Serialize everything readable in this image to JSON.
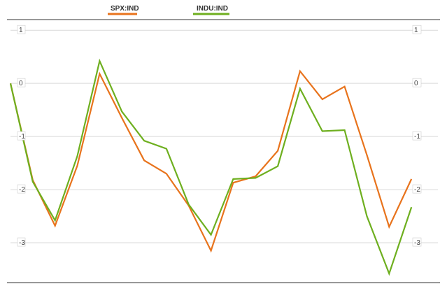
{
  "chart_data": {
    "type": "line",
    "title": "",
    "xlabel": "",
    "ylabel": "",
    "x": [
      0,
      1,
      2,
      3,
      4,
      5,
      6,
      7,
      8,
      9,
      10,
      11,
      12,
      13,
      14,
      15,
      16,
      17,
      18,
      19
    ],
    "ylim": [
      -3.75,
      1.2
    ],
    "yticks": [
      1,
      0,
      -1,
      -2,
      -3
    ],
    "ytick_labels": [
      "1",
      "0",
      "-1",
      "-2",
      "-3"
    ],
    "grid": true,
    "legend": "top-center",
    "series": [
      {
        "name": "SPX:IND",
        "color": "#e8731c",
        "values": [
          0.0,
          -1.82,
          -2.68,
          -1.55,
          0.18,
          -0.65,
          -1.45,
          -1.7,
          -2.3,
          -3.15,
          -1.87,
          -1.75,
          -1.27,
          0.23,
          -0.3,
          -0.06,
          -1.35,
          -2.7,
          -1.8,
          null
        ]
      },
      {
        "name": "INDU:IND",
        "color": "#6eaf1f",
        "values": [
          0.0,
          -1.85,
          -2.58,
          -1.37,
          0.42,
          -0.53,
          -1.08,
          -1.23,
          -2.28,
          -2.85,
          -1.8,
          -1.78,
          -1.56,
          -0.1,
          -0.9,
          -0.88,
          -2.5,
          -3.58,
          -2.33,
          null
        ]
      }
    ]
  }
}
